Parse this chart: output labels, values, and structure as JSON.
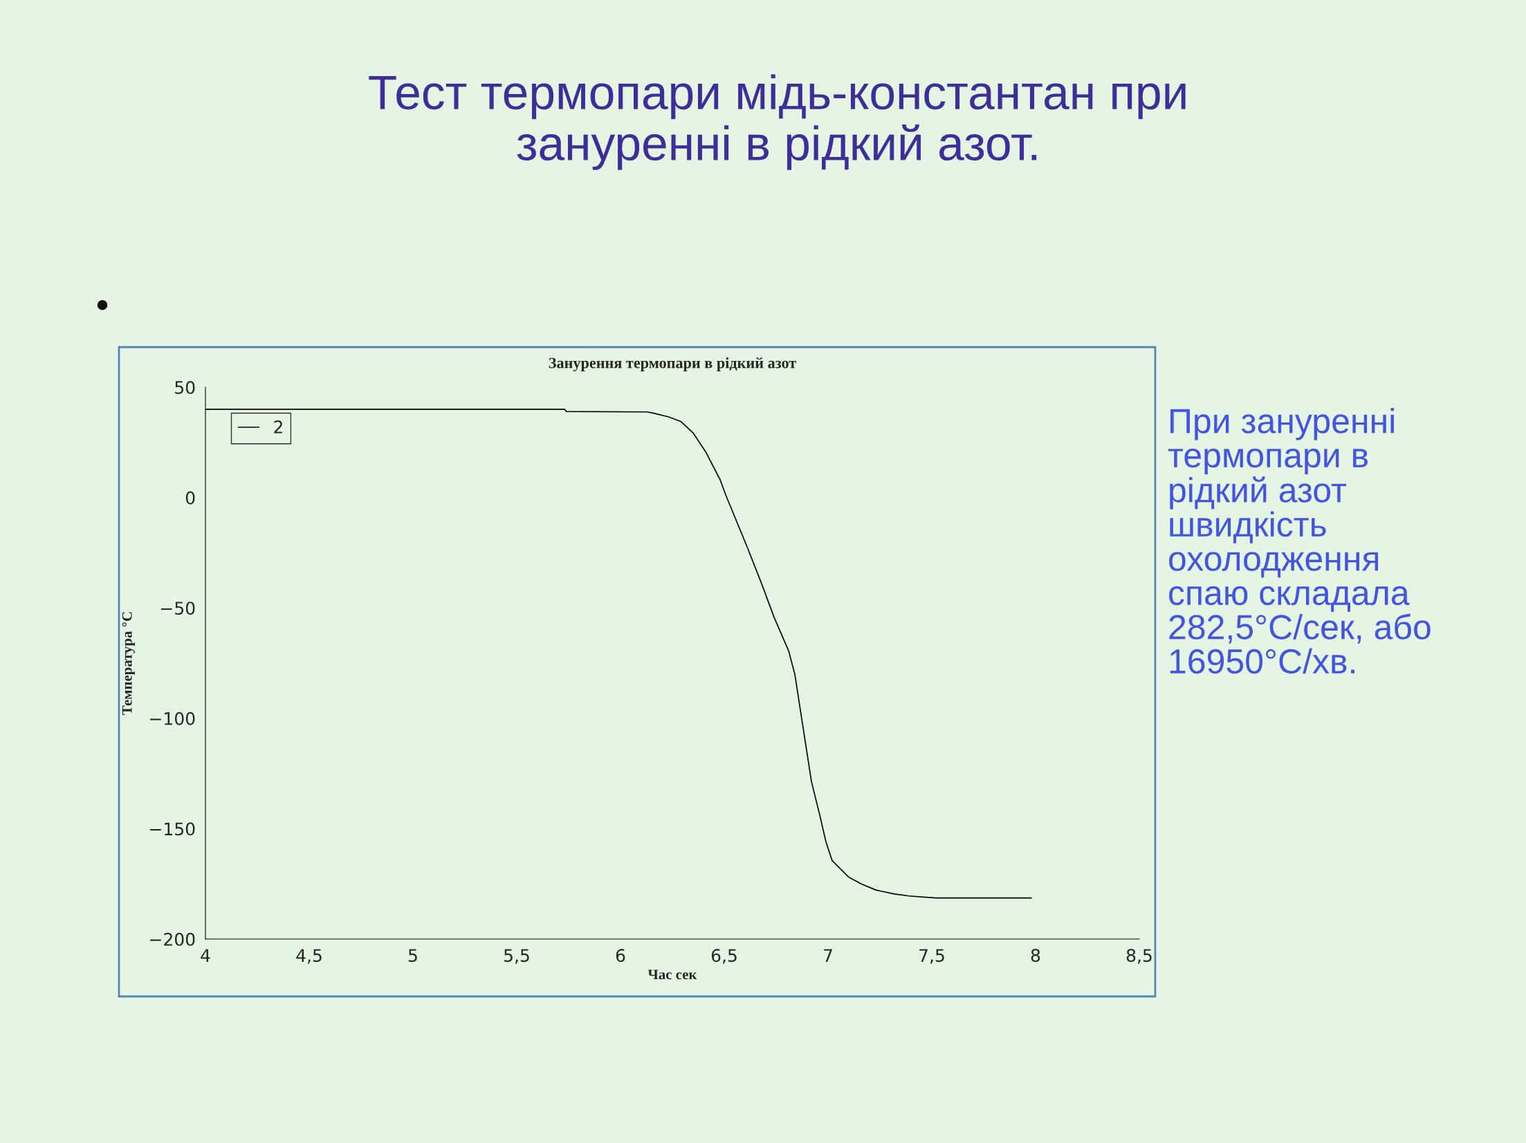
{
  "chart_data": {
    "type": "line",
    "title": "Тест термопари мідь-константан при\nзануренні в рідкий азот.",
    "subtitle": "Занурення термопари в рідкий азот",
    "xlabel": "Час сек",
    "ylabel": "Температура °C",
    "annotations": [
      "•",
      "При зануренні\nтермопари в\nрідкий азот\nшвидкість\nохолодження\nспаю складала\n282,5°C/сек, або\n16950°C/хв."
    ],
    "series": [
      {
        "name": "2",
        "color": "#000000",
        "x": [
          4.0,
          5.73,
          5.74,
          6.13,
          6.16,
          6.23,
          6.29,
          6.35,
          6.41,
          6.48,
          6.51,
          6.55,
          6.61,
          6.68,
          6.74,
          6.81,
          6.84,
          6.86,
          6.89,
          6.92,
          6.96,
          6.99,
          7.02,
          7.1,
          7.16,
          7.23,
          7.32,
          7.39,
          7.52,
          7.65,
          7.98
        ],
        "values": [
          40,
          40,
          39,
          38.8,
          38.2,
          36.6,
          34.5,
          29.3,
          20.8,
          8.1,
          0.5,
          -8.6,
          -22.3,
          -39,
          -54.2,
          -69.4,
          -80,
          -92.2,
          -110.4,
          -128.6,
          -143.8,
          -156,
          -164.5,
          -172,
          -175,
          -177.8,
          -179.6,
          -180.5,
          -181.4,
          -181.4,
          -181.4
        ]
      }
    ],
    "xlim": [
      4,
      8.5
    ],
    "xticks": [
      4,
      {
        "value": 4.5,
        "label": "4,5"
      },
      5,
      {
        "value": 5.5,
        "label": "5,5"
      },
      6,
      {
        "value": 6.5,
        "label": "6,5"
      },
      7,
      {
        "value": 7.5,
        "label": "7,5"
      },
      8,
      {
        "value": 8.5,
        "label": "8,5"
      }
    ],
    "ylim": [
      -200,
      50
    ],
    "yticks": [
      {
        "value": -200,
        "label": "−200"
      },
      {
        "value": -150,
        "label": "−150"
      },
      {
        "value": -100,
        "label": "−100"
      },
      {
        "value": -50,
        "label": "−50"
      },
      0,
      50
    ],
    "grid": false,
    "legend": "top left",
    "marker": "none",
    "line_style": "solid"
  }
}
